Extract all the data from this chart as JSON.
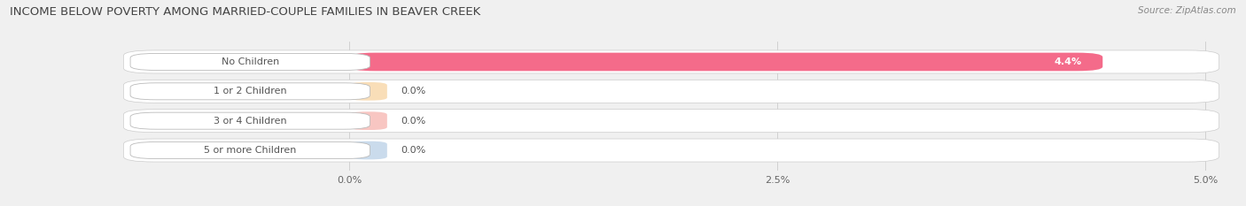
{
  "title": "INCOME BELOW POVERTY AMONG MARRIED-COUPLE FAMILIES IN BEAVER CREEK",
  "source": "Source: ZipAtlas.com",
  "categories": [
    "No Children",
    "1 or 2 Children",
    "3 or 4 Children",
    "5 or more Children"
  ],
  "values": [
    4.4,
    0.0,
    0.0,
    0.0
  ],
  "bar_colors": [
    "#f46b8a",
    "#f5c98a",
    "#f4a09a",
    "#a8c4e0"
  ],
  "xlim_max": 5.0,
  "xtick_labels": [
    "0.0%",
    "2.5%",
    "5.0%"
  ],
  "value_labels": [
    "4.4%",
    "0.0%",
    "0.0%",
    "0.0%"
  ],
  "bg_color": "#f0f0f0",
  "row_bg_color": "#ffffff",
  "label_color": "#555555",
  "title_color": "#444444",
  "source_color": "#888888",
  "figsize": [
    14.06,
    2.33
  ],
  "dpi": 100
}
